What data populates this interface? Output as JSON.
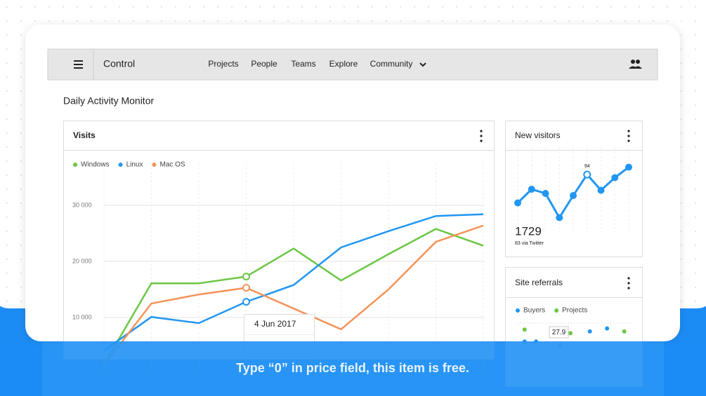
{
  "nav": {
    "title": "Control",
    "links": [
      "Projects",
      "People",
      "Teams",
      "Explore",
      "Community"
    ]
  },
  "page_title": "Daily Activity Monitor",
  "cards": {
    "visits": "Visits",
    "new_visitors": {
      "title": "New visitors",
      "total": "1729",
      "caption": "83 via Twitter"
    },
    "site_referrals": "Site referrals"
  },
  "tooltips": {
    "visits_date": "4 Jun 2017",
    "referrals": "27.9"
  },
  "banner": "Type “0” in price field, this item is free.",
  "chart_data": [
    {
      "type": "line",
      "legend": "top-left",
      "grid": true,
      "categories": [
        null,
        null,
        null,
        null,
        null,
        null,
        null,
        null,
        null
      ],
      "series": [
        {
          "name": "Windows",
          "color": "#6cc644",
          "values": [
            1600,
            16100,
            16100,
            17300,
            22300,
            16600,
            21300,
            25800,
            22800
          ]
        },
        {
          "name": "Linux",
          "color": "#2196f3",
          "values": [
            4100,
            10100,
            9000,
            12800,
            15800,
            22500,
            25400,
            28100,
            28400
          ]
        },
        {
          "name": "Mac OS",
          "color": "#f4935a",
          "values": [
            1500,
            12500,
            14100,
            15300,
            11600,
            7900,
            15000,
            23500,
            26400
          ]
        }
      ],
      "ylim": [
        0,
        37500
      ],
      "yticks": [
        {
          "value": 10000,
          "label": "10 000"
        },
        {
          "value": 20000,
          "label": "20 000"
        },
        {
          "value": 30000,
          "label": "30 000"
        }
      ]
    },
    {
      "type": "line",
      "color": "#2196f3",
      "categories": [
        null,
        null,
        null,
        null,
        null,
        null,
        null,
        null,
        null
      ],
      "values": [
        67,
        80,
        76,
        53,
        74,
        94,
        79,
        91,
        101
      ],
      "ylim": [
        40,
        120
      ]
    },
    {
      "type": "scatter",
      "legend": "top-left",
      "series": [
        {
          "name": "Buyers",
          "color": "#2196f3",
          "x": [
            0.6,
            1.6,
            6.3,
            7.8
          ],
          "y": [
            6.2,
            6.2,
            7.9,
            8.4
          ]
        },
        {
          "name": "Projects",
          "color": "#6cc644",
          "x": [
            0.6,
            4.6,
            9.3,
            3.7
          ],
          "y": [
            8.2,
            7.6,
            7.9,
            5.5
          ]
        }
      ],
      "xlim": [
        0,
        10
      ],
      "ylim": [
        0,
        10
      ]
    }
  ]
}
